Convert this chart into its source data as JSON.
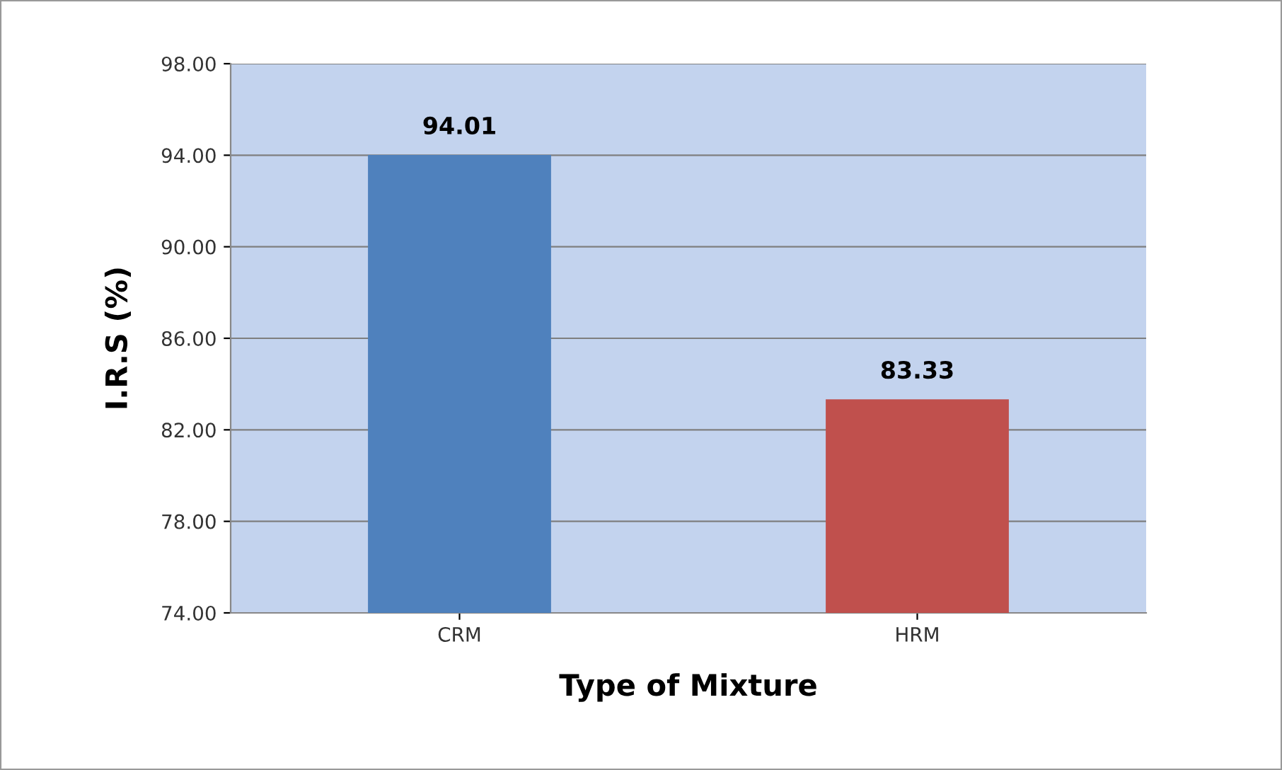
{
  "chart_data": {
    "type": "bar",
    "categories": [
      "CRM",
      "HRM"
    ],
    "values": [
      94.01,
      83.33
    ],
    "colors": [
      "#4f81bd",
      "#c0504d"
    ],
    "xlabel": "Type of Mixture",
    "ylabel": "I.R.S (%)",
    "ylim": [
      74,
      98
    ],
    "yticks": [
      {
        "value": 74,
        "label": "74.00"
      },
      {
        "value": 78,
        "label": "78.00"
      },
      {
        "value": 82,
        "label": "82.00"
      },
      {
        "value": 86,
        "label": "86.00"
      },
      {
        "value": 90,
        "label": "90.00"
      },
      {
        "value": 94,
        "label": "94.00"
      },
      {
        "value": 98,
        "label": "98.00"
      }
    ],
    "grid": "y",
    "data_labels": true,
    "legend": false
  }
}
